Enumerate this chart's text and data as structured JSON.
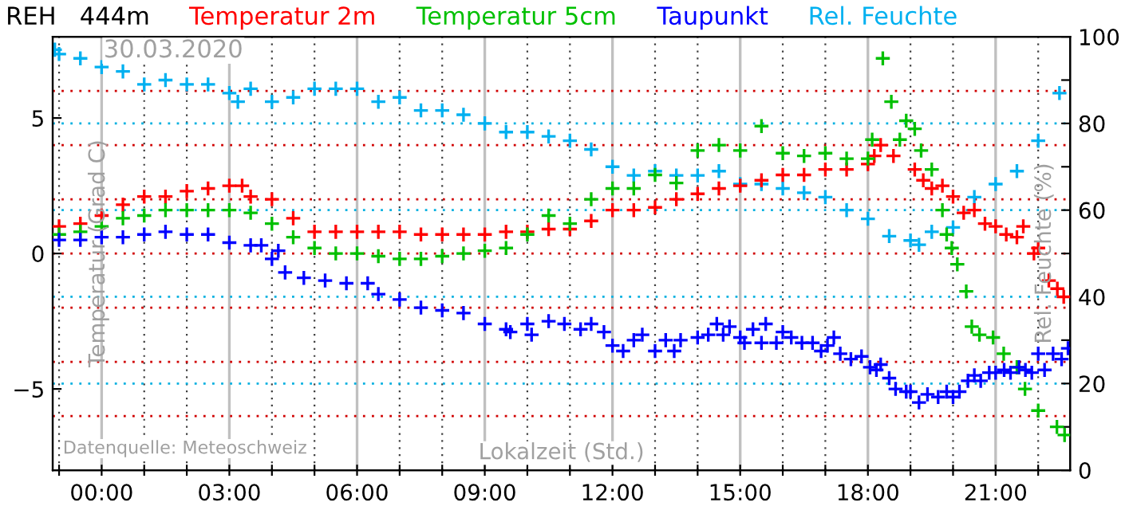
{
  "chart_data": {
    "type": "scatter",
    "title": "REH   444m",
    "xlabel": "Lokalzeit (Std.)",
    "ylabel": "Temperatur (Grad C)",
    "y2label": "Rel. Feuchte (%)",
    "annotations": [
      "30.03.2020",
      "Datenquelle: Meteoschweiz"
    ],
    "marker": "cross",
    "legend": "top",
    "grid": "x",
    "xlim": [
      -1.15,
      22.75
    ],
    "xticks": [
      {
        "value": -1,
        "label": null
      },
      {
        "value": 0,
        "label": "00:00"
      },
      {
        "value": 1,
        "label": null
      },
      {
        "value": 2,
        "label": null
      },
      {
        "value": 3,
        "label": "03:00"
      },
      {
        "value": 4,
        "label": null
      },
      {
        "value": 5,
        "label": null
      },
      {
        "value": 6,
        "label": "06:00"
      },
      {
        "value": 7,
        "label": null
      },
      {
        "value": 8,
        "label": null
      },
      {
        "value": 9,
        "label": "09:00"
      },
      {
        "value": 10,
        "label": null
      },
      {
        "value": 11,
        "label": null
      },
      {
        "value": 12,
        "label": "12:00"
      },
      {
        "value": 13,
        "label": null
      },
      {
        "value": 14,
        "label": null
      },
      {
        "value": 15,
        "label": "15:00"
      },
      {
        "value": 16,
        "label": null
      },
      {
        "value": 17,
        "label": null
      },
      {
        "value": 18,
        "label": "18:00"
      },
      {
        "value": 19,
        "label": null
      },
      {
        "value": 20,
        "label": null
      },
      {
        "value": 21,
        "label": "21:00"
      },
      {
        "value": 22,
        "label": null
      }
    ],
    "ylim": [
      -8,
      8
    ],
    "yticks": [
      {
        "value": -5,
        "label": "−5"
      },
      0,
      5
    ],
    "y2lim": [
      0,
      100
    ],
    "y2ticks": [
      0,
      {
        "value": 10,
        "label": null
      },
      20,
      {
        "value": 30,
        "label": null
      },
      40,
      {
        "value": 50,
        "label": null
      },
      60,
      {
        "value": 70,
        "label": null
      },
      80,
      {
        "value": 90,
        "label": null
      },
      100
    ],
    "ref_lines": [
      {
        "axis": "y",
        "value": -6,
        "color": "#d00000",
        "line_style": "dotted"
      },
      {
        "axis": "y",
        "value": -4,
        "color": "#d00000",
        "line_style": "dotted"
      },
      {
        "axis": "y",
        "value": -2,
        "color": "#d00000",
        "line_style": "dotted"
      },
      {
        "axis": "y",
        "value": 0,
        "color": "#d00000",
        "line_style": "dotted"
      },
      {
        "axis": "y",
        "value": 2,
        "color": "#d00000",
        "line_style": "dotted"
      },
      {
        "axis": "y",
        "value": 4,
        "color": "#d00000",
        "line_style": "dotted"
      },
      {
        "axis": "y",
        "value": 6,
        "color": "#d00000",
        "line_style": "dotted"
      },
      {
        "axis": "y2",
        "value": 20,
        "color": "#00b0e0",
        "line_style": "dotted"
      },
      {
        "axis": "y2",
        "value": 40,
        "color": "#00b0e0",
        "line_style": "dotted"
      },
      {
        "axis": "y2",
        "value": 60,
        "color": "#00b0e0",
        "line_style": "dotted"
      },
      {
        "axis": "y2",
        "value": 80,
        "color": "#00b0e0",
        "line_style": "dotted"
      }
    ],
    "series": [
      {
        "name": "Temperatur 2m",
        "color": "#ff0000",
        "x": [
          -1.0,
          -0.5,
          0,
          0.5,
          1.0,
          1.5,
          2.0,
          2.5,
          3.0,
          3.3,
          3.5,
          4.0,
          4.5,
          5.0,
          5.5,
          6.0,
          6.5,
          7.0,
          7.5,
          8.0,
          8.5,
          9.0,
          9.5,
          10.0,
          10.5,
          11.0,
          11.5,
          12.0,
          12.5,
          13.0,
          13.5,
          14.0,
          14.5,
          15.0,
          15.5,
          16.0,
          16.5,
          17.0,
          17.5,
          18.0,
          18.15,
          18.3,
          18.6,
          19.1,
          19.3,
          19.5,
          19.75,
          20.0,
          20.25,
          20.5,
          20.75,
          21.0,
          21.25,
          21.5,
          21.65,
          21.9,
          22.0,
          22.25,
          22.45,
          22.6
        ],
        "values": [
          1.0,
          1.1,
          1.4,
          1.8,
          2.1,
          2.1,
          2.3,
          2.4,
          2.5,
          2.5,
          2.1,
          2.0,
          1.3,
          0.8,
          0.8,
          0.8,
          0.8,
          0.8,
          0.7,
          0.7,
          0.7,
          0.7,
          0.8,
          0.8,
          0.9,
          0.9,
          1.2,
          1.6,
          1.6,
          1.7,
          2.0,
          2.2,
          2.4,
          2.5,
          2.7,
          2.9,
          2.9,
          3.1,
          3.1,
          3.3,
          3.6,
          4.0,
          3.6,
          3.1,
          2.7,
          2.4,
          2.5,
          2.1,
          1.5,
          1.6,
          1.1,
          1.0,
          0.7,
          0.6,
          1.0,
          0.0,
          0.2,
          -1.0,
          -1.3,
          -1.6
        ]
      },
      {
        "name": "Temperatur 5cm",
        "color": "#00c000",
        "x": [
          -1.0,
          -0.5,
          0,
          0.5,
          1.0,
          1.5,
          2.0,
          2.5,
          3.0,
          3.5,
          4.0,
          4.5,
          5.0,
          5.5,
          6.0,
          6.5,
          7.0,
          7.5,
          8.0,
          8.5,
          9.0,
          9.5,
          10.0,
          10.5,
          11.0,
          11.5,
          12.0,
          12.5,
          13.0,
          13.5,
          14.0,
          14.5,
          15.0,
          15.5,
          16.0,
          16.5,
          17.0,
          17.5,
          18.0,
          18.1,
          18.35,
          18.55,
          18.75,
          18.9,
          19.1,
          19.25,
          19.5,
          19.75,
          19.85,
          19.97,
          20.1,
          20.31,
          20.44,
          20.62,
          20.94,
          21.19,
          21.5,
          21.69,
          22.0,
          22.44,
          22.62
        ],
        "values": [
          0.7,
          0.8,
          1.0,
          1.3,
          1.4,
          1.6,
          1.6,
          1.6,
          1.6,
          1.5,
          1.1,
          0.6,
          0.2,
          0.0,
          0.0,
          -0.1,
          -0.2,
          -0.2,
          -0.1,
          0.0,
          0.1,
          0.2,
          0.7,
          1.4,
          1.1,
          2.0,
          2.4,
          2.4,
          2.9,
          2.6,
          3.8,
          4.0,
          3.8,
          4.7,
          3.7,
          3.6,
          3.7,
          3.5,
          3.5,
          4.2,
          7.2,
          5.6,
          4.2,
          4.9,
          4.6,
          3.8,
          3.1,
          1.6,
          0.7,
          0.2,
          -0.4,
          -1.4,
          -2.7,
          -3.0,
          -3.1,
          -3.7,
          -4.2,
          -5.0,
          -5.8,
          -6.4,
          -6.7
        ]
      },
      {
        "name": "Taupunkt",
        "color": "#0000ff",
        "x": [
          -1.0,
          -0.5,
          0,
          0.5,
          1.0,
          1.5,
          2.0,
          2.5,
          3.0,
          3.5,
          3.75,
          4.0,
          4.15,
          4.31,
          4.75,
          5.25,
          5.75,
          6.25,
          6.5,
          7.0,
          7.5,
          8.0,
          8.5,
          9.0,
          9.5,
          9.6,
          10.0,
          10.1,
          10.5,
          10.87,
          11.25,
          11.5,
          11.8,
          12.0,
          12.25,
          12.5,
          12.7,
          13.0,
          13.25,
          13.45,
          13.6,
          14.0,
          14.25,
          14.45,
          14.6,
          14.75,
          15.0,
          15.1,
          15.3,
          15.5,
          15.6,
          15.85,
          16.0,
          16.2,
          16.45,
          16.7,
          16.9,
          17.05,
          17.2,
          17.35,
          17.6,
          17.85,
          18.05,
          18.2,
          18.3,
          18.5,
          18.65,
          18.9,
          19.0,
          19.2,
          19.4,
          19.65,
          19.85,
          20.0,
          20.15,
          20.35,
          20.5,
          20.65,
          20.85,
          21.0,
          21.2,
          21.35,
          21.55,
          21.7,
          21.85,
          22.0,
          22.15,
          22.35,
          22.55,
          22.7
        ],
        "values": [
          0.5,
          0.5,
          0.6,
          0.6,
          0.7,
          0.8,
          0.7,
          0.7,
          0.4,
          0.3,
          0.3,
          -0.2,
          0.1,
          -0.7,
          -0.9,
          -1.0,
          -1.1,
          -1.1,
          -1.5,
          -1.7,
          -2.0,
          -2.1,
          -2.2,
          -2.6,
          -2.8,
          -2.9,
          -2.6,
          -3.0,
          -2.5,
          -2.6,
          -2.8,
          -2.6,
          -2.9,
          -3.4,
          -3.6,
          -3.2,
          -3.0,
          -3.6,
          -3.2,
          -3.6,
          -3.2,
          -3.1,
          -3.0,
          -2.6,
          -3.0,
          -2.7,
          -3.1,
          -3.3,
          -2.8,
          -3.3,
          -2.6,
          -3.3,
          -2.9,
          -3.1,
          -3.3,
          -3.3,
          -3.6,
          -3.4,
          -3.1,
          -3.7,
          -3.9,
          -3.8,
          -4.2,
          -4.3,
          -4.1,
          -4.6,
          -5.0,
          -5.1,
          -5.1,
          -5.5,
          -5.2,
          -5.3,
          -5.1,
          -5.3,
          -5.1,
          -4.7,
          -4.5,
          -4.7,
          -4.4,
          -4.4,
          -4.3,
          -4.4,
          -4.2,
          -4.3,
          -4.4,
          -3.7,
          -4.3,
          -3.7,
          -3.9,
          -3.5
        ]
      },
      {
        "name": "Rel. Feuchte",
        "color": "#00b0f0",
        "axis": "y2",
        "x": [
          -1.1,
          -1.0,
          -0.5,
          0,
          0.5,
          1.0,
          1.5,
          2.0,
          2.5,
          3.0,
          3.2,
          3.5,
          4.0,
          4.5,
          5.0,
          5.5,
          6.0,
          6.5,
          7.0,
          7.5,
          8.0,
          8.5,
          9.0,
          9.5,
          10.0,
          10.5,
          11.0,
          11.5,
          12.0,
          12.5,
          13.0,
          13.5,
          14.0,
          14.5,
          15.0,
          15.5,
          16.0,
          16.5,
          17.0,
          17.5,
          18.0,
          18.5,
          19.0,
          19.2,
          19.5,
          20.0,
          20.5,
          21.0,
          21.5,
          22.0,
          22.5
        ],
        "values": [
          97,
          96,
          95,
          93,
          92,
          89,
          90,
          89,
          89,
          87,
          85,
          88,
          85,
          86,
          88,
          88,
          88,
          85,
          86,
          83,
          83,
          82,
          80,
          78,
          78,
          77,
          76,
          74,
          70,
          68,
          69,
          68,
          68,
          69,
          66,
          66,
          65,
          64,
          63,
          60,
          58,
          54,
          53,
          52,
          55,
          56,
          63,
          66,
          69,
          76,
          87
        ]
      }
    ]
  }
}
